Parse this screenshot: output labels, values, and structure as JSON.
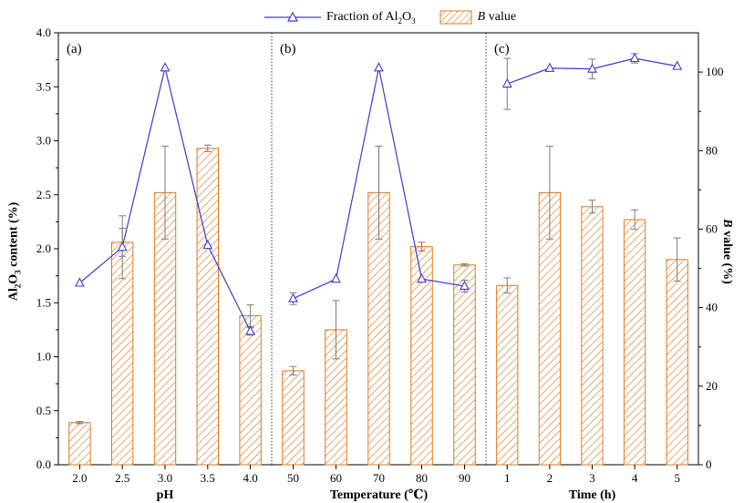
{
  "legend": {
    "line_label": "Fraction of Al2O3",
    "bar_label": "B value"
  },
  "colors": {
    "line": "#3a3ad0",
    "bar_stroke": "#e07820",
    "error": "#7a7a7a"
  },
  "chart_data": {
    "type": "bar+line",
    "ylabel": "Al2O3 content (%)",
    "y2label": "B value (%)",
    "ylim": [
      0,
      4.0
    ],
    "y2lim": [
      0,
      110
    ],
    "yticks": [
      "0.0",
      "0.5",
      "1.0",
      "1.5",
      "2.0",
      "2.5",
      "3.0",
      "3.5",
      "4.0"
    ],
    "y2ticks": [
      "0",
      "20",
      "40",
      "60",
      "80",
      "100"
    ],
    "panels": [
      {
        "label": "(a)",
        "xlabel": "pH",
        "categories": [
          "2.0",
          "2.5",
          "3.0",
          "3.5",
          "4.0"
        ],
        "bar_values": [
          0.39,
          2.06,
          2.52,
          2.93,
          1.38
        ],
        "bar_errors": [
          0.01,
          0.13,
          0.43,
          0.03,
          0.1
        ],
        "line_values": [
          46.3,
          55.4,
          101.1,
          55.9,
          34.0
        ],
        "line_errors": [
          0,
          8,
          0,
          0,
          1.0
        ]
      },
      {
        "label": "(b)",
        "xlabel": "Temperature (℃)",
        "categories": [
          "50",
          "60",
          "70",
          "80",
          "90"
        ],
        "bar_values": [
          0.87,
          1.25,
          2.52,
          2.02,
          1.85
        ],
        "bar_errors": [
          0.04,
          0.27,
          0.43,
          0.04,
          0.01
        ],
        "line_values": [
          42.3,
          47.3,
          101.1,
          47.3,
          45.5
        ],
        "line_errors": [
          1.5,
          0,
          0,
          0,
          1.5
        ]
      },
      {
        "label": "(c)",
        "xlabel": "Time (h)",
        "categories": [
          "1",
          "2",
          "3",
          "4",
          "5"
        ],
        "bar_values": [
          1.66,
          2.52,
          2.39,
          2.27,
          1.9
        ],
        "bar_errors": [
          0.07,
          0.43,
          0.06,
          0.09,
          0.2
        ],
        "line_values": [
          97.0,
          101.0,
          100.8,
          103.5,
          101.5
        ],
        "line_errors": [
          6.5,
          0,
          2.5,
          1.2,
          0
        ]
      }
    ]
  }
}
